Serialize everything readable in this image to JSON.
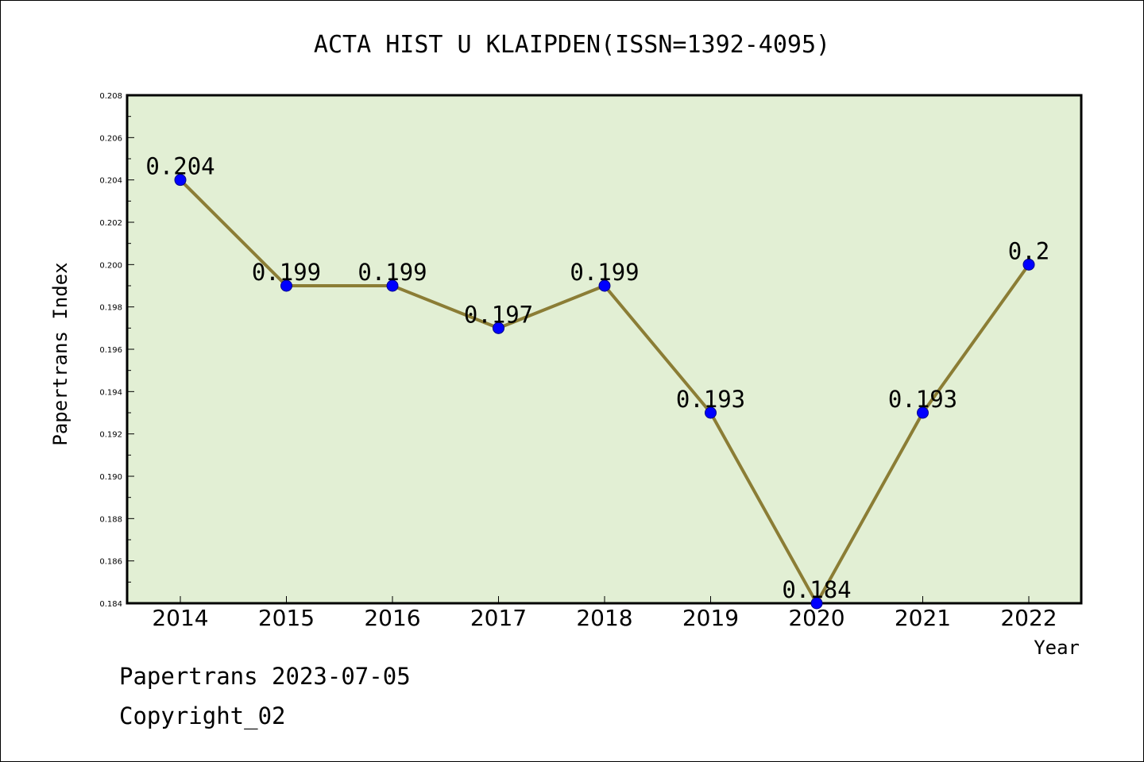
{
  "chart_data": {
    "type": "line",
    "title": "ACTA HIST U KLAIPDEN(ISSN=1392-4095)",
    "xlabel": "Year",
    "ylabel": "Papertrans Index",
    "categories": [
      "2014",
      "2015",
      "2016",
      "2017",
      "2018",
      "2019",
      "2020",
      "2021",
      "2022"
    ],
    "series": [
      {
        "values": [
          0.204,
          0.199,
          0.199,
          0.197,
          0.199,
          0.193,
          0.184,
          0.193,
          0.2
        ],
        "labels": [
          "0.204",
          "0.199",
          "0.199",
          "0.197",
          "0.199",
          "0.193",
          "0.184",
          "0.193",
          "0.2"
        ]
      }
    ],
    "ylim": [
      0.184,
      0.208
    ],
    "yticks": [
      "0.184",
      "0.186",
      "0.188",
      "0.190",
      "0.192",
      "0.194",
      "0.196",
      "0.198",
      "0.200",
      "0.202",
      "0.204",
      "0.206",
      "0.208"
    ],
    "grid": false,
    "colors": {
      "plot_background": "#e2efd4",
      "line": "#8b7d35",
      "marker": "#0000ff"
    }
  },
  "footer": {
    "line1": "Papertrans 2023-07-05",
    "line2": "Copyright_02"
  }
}
